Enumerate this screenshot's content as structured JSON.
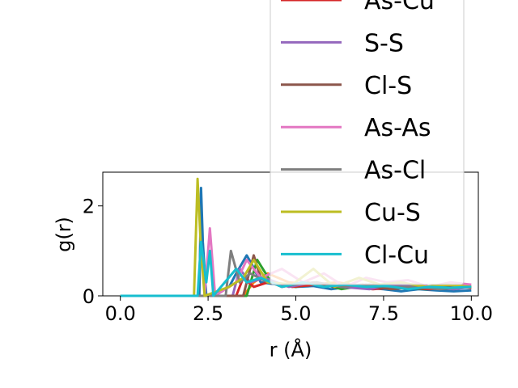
{
  "chart_data": {
    "type": "line",
    "title": "",
    "xlabel": "r (Å)",
    "ylabel": "g(r)",
    "xlim": [
      -0.5,
      10.2
    ],
    "ylim": [
      0,
      2.75
    ],
    "x_ticks": [
      "0.0",
      "2.5",
      "5.0",
      "7.5",
      "10.0"
    ],
    "x_tick_values": [
      0.0,
      2.5,
      5.0,
      7.5,
      10.0
    ],
    "y_ticks": [
      "0",
      "2"
    ],
    "y_tick_values": [
      0,
      2
    ],
    "grid": false,
    "legend_placement": "upper-right (overflowing above plot)",
    "series": [
      {
        "name": "",
        "color": "#1f77b4",
        "x": [
          0,
          2.25,
          2.3,
          2.35,
          2.45,
          3.1,
          3.3,
          3.6,
          3.75,
          4.0,
          4.5,
          5.0,
          5.5,
          6.0,
          6.5,
          7.0,
          7.5,
          8.0,
          8.5,
          9.0,
          9.5,
          10.0
        ],
        "y": [
          0,
          0,
          2.4,
          1.2,
          0,
          0.2,
          0.5,
          0.9,
          0.7,
          0.3,
          0.25,
          0.2,
          0.22,
          0.15,
          0.2,
          0.18,
          0.15,
          0.1,
          0.15,
          0.12,
          0.1,
          0.12
        ]
      },
      {
        "name": "",
        "color": "#ff7f0e",
        "x": [
          0,
          3.5,
          3.8,
          4.2,
          4.8,
          5.5,
          6.2,
          7.0,
          7.8,
          8.6,
          9.4,
          10.0
        ],
        "y": [
          0,
          0,
          0.3,
          0.5,
          0.3,
          0.25,
          0.3,
          0.2,
          0.25,
          0.2,
          0.22,
          0.2
        ]
      },
      {
        "name": "",
        "color": "#2ca02c",
        "x": [
          0,
          3.6,
          3.9,
          4.3,
          5.0,
          5.6,
          6.3,
          7.1,
          7.9,
          8.7,
          9.5,
          10.0
        ],
        "y": [
          0,
          0,
          0.8,
          0.3,
          0.2,
          0.3,
          0.15,
          0.25,
          0.2,
          0.15,
          0.2,
          0.18
        ]
      },
      {
        "name": "As-Cu",
        "color": "#d62728",
        "x": [
          0,
          3.3,
          3.5,
          3.8,
          4.2,
          4.9,
          5.6,
          6.4,
          7.2,
          8.0,
          8.8,
          9.6,
          10.0
        ],
        "y": [
          0,
          0,
          0.4,
          0.2,
          0.3,
          0.2,
          0.25,
          0.2,
          0.15,
          0.2,
          0.15,
          0.2,
          0.18
        ]
      },
      {
        "name": "S-S",
        "color": "#9467bd",
        "x": [
          0,
          3.2,
          3.4,
          3.7,
          4.1,
          4.8,
          5.5,
          6.3,
          7.1,
          7.9,
          8.7,
          9.5,
          10.0
        ],
        "y": [
          0,
          0,
          0.6,
          0.3,
          0.4,
          0.2,
          0.3,
          0.2,
          0.15,
          0.25,
          0.2,
          0.15,
          0.2
        ]
      },
      {
        "name": "Cl-S",
        "color": "#8c564b",
        "x": [
          0,
          3.5,
          3.8,
          4.0,
          4.6,
          5.3,
          6.1,
          6.9,
          7.7,
          8.5,
          9.3,
          10.0
        ],
        "y": [
          0,
          0,
          0.9,
          0.4,
          0.2,
          0.3,
          0.2,
          0.25,
          0.15,
          0.2,
          0.18,
          0.2
        ]
      },
      {
        "name": "As-As",
        "color": "#e377c2",
        "x": [
          0,
          2.4,
          2.55,
          2.7,
          3.3,
          3.6,
          4.0,
          4.6,
          5.2,
          5.8,
          6.4,
          7.0,
          7.6,
          8.2,
          8.8,
          9.4,
          10.0
        ],
        "y": [
          0,
          0,
          1.5,
          0,
          0.3,
          0.8,
          0.4,
          0.6,
          0.3,
          0.5,
          0.2,
          0.4,
          0.3,
          0.35,
          0.2,
          0.3,
          0.25
        ]
      },
      {
        "name": "As-Cl",
        "color": "#7f7f7f",
        "x": [
          0,
          3.0,
          3.15,
          3.4,
          3.7,
          4.2,
          4.9,
          5.6,
          6.3,
          7.0,
          7.7,
          8.4,
          9.1,
          9.8,
          10.0
        ],
        "y": [
          0,
          0,
          1.0,
          0.3,
          0.5,
          0.3,
          0.25,
          0.3,
          0.2,
          0.25,
          0.2,
          0.2,
          0.15,
          0.2,
          0.2
        ]
      },
      {
        "name": "Cu-S",
        "color": "#bcbd22",
        "x": [
          0,
          2.1,
          2.2,
          2.3,
          2.4,
          3.1,
          3.5,
          3.8,
          4.2,
          4.9,
          5.5,
          6.1,
          6.8,
          7.4,
          8.0,
          8.7,
          9.3,
          10.0
        ],
        "y": [
          0,
          0,
          2.6,
          1.0,
          0,
          0.2,
          0.4,
          0.8,
          0.3,
          0.25,
          0.6,
          0.2,
          0.4,
          0.25,
          0.3,
          0.2,
          0.25,
          0.2
        ]
      },
      {
        "name": "Cl-Cu",
        "color": "#17becf",
        "x": [
          0,
          2.2,
          2.3,
          2.45,
          2.55,
          2.65,
          3.3,
          3.6,
          4.0,
          4.6,
          5.2,
          5.8,
          6.4,
          7.0,
          7.6,
          8.2,
          8.8,
          9.4,
          10.0
        ],
        "y": [
          0,
          0,
          1.2,
          0.3,
          1.0,
          0,
          0.6,
          0.3,
          0.4,
          0.2,
          0.3,
          0.2,
          0.25,
          0.2,
          0.22,
          0.15,
          0.2,
          0.18,
          0.2
        ]
      }
    ]
  }
}
